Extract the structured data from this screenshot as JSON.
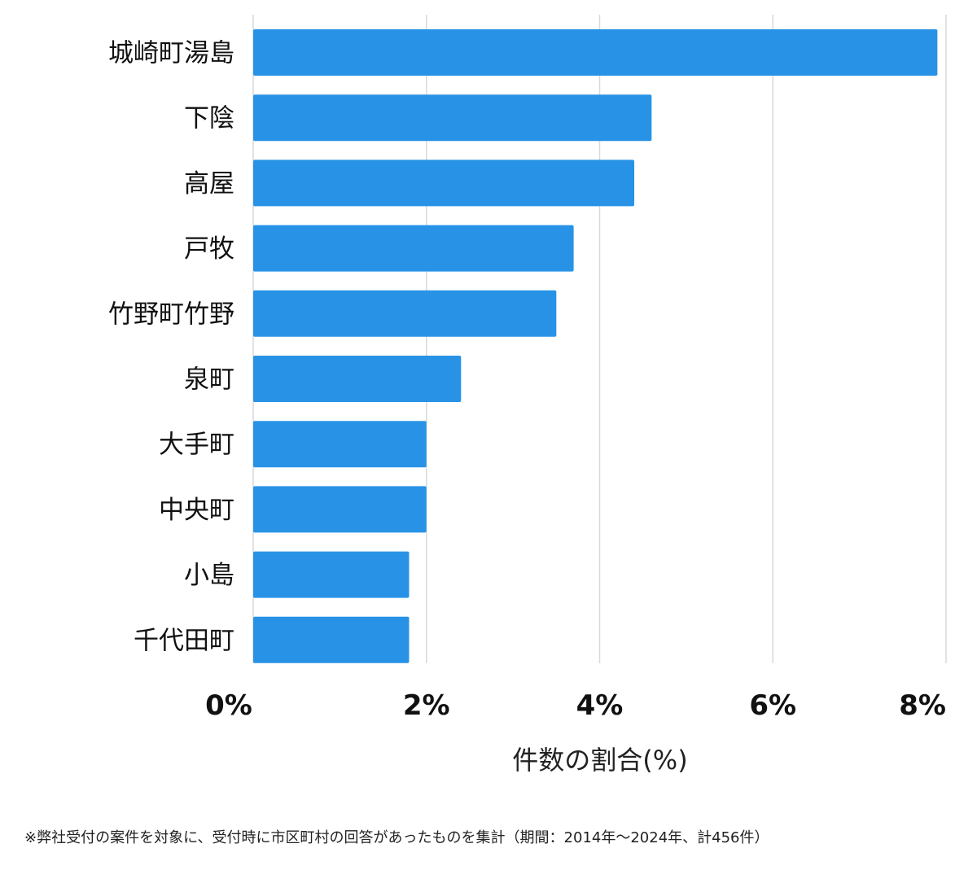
{
  "chart_data": {
    "type": "bar",
    "orientation": "horizontal",
    "categories": [
      "城崎町湯島",
      "下陰",
      "高屋",
      "戸牧",
      "竹野町竹野",
      "泉町",
      "大手町",
      "中央町",
      "小島",
      "千代田町"
    ],
    "values": [
      7.9,
      4.6,
      4.4,
      3.7,
      3.5,
      2.4,
      2.0,
      2.0,
      1.8,
      1.8
    ],
    "xlabel": "件数の割合(%)",
    "ylabel": "",
    "xlim": [
      0,
      8
    ],
    "xticks": [
      0,
      2,
      4,
      6,
      8
    ],
    "xtick_labels": [
      "0%",
      "2%",
      "4%",
      "6%",
      "8%"
    ],
    "grid": "vertical",
    "bar_color": "#2893e6",
    "grid_color": "#d9d9d9"
  },
  "footnote": "※弊社受付の案件を対象に、受付時に市区町村の回答があったものを集計（期間：2014年～2024年、計456件）"
}
